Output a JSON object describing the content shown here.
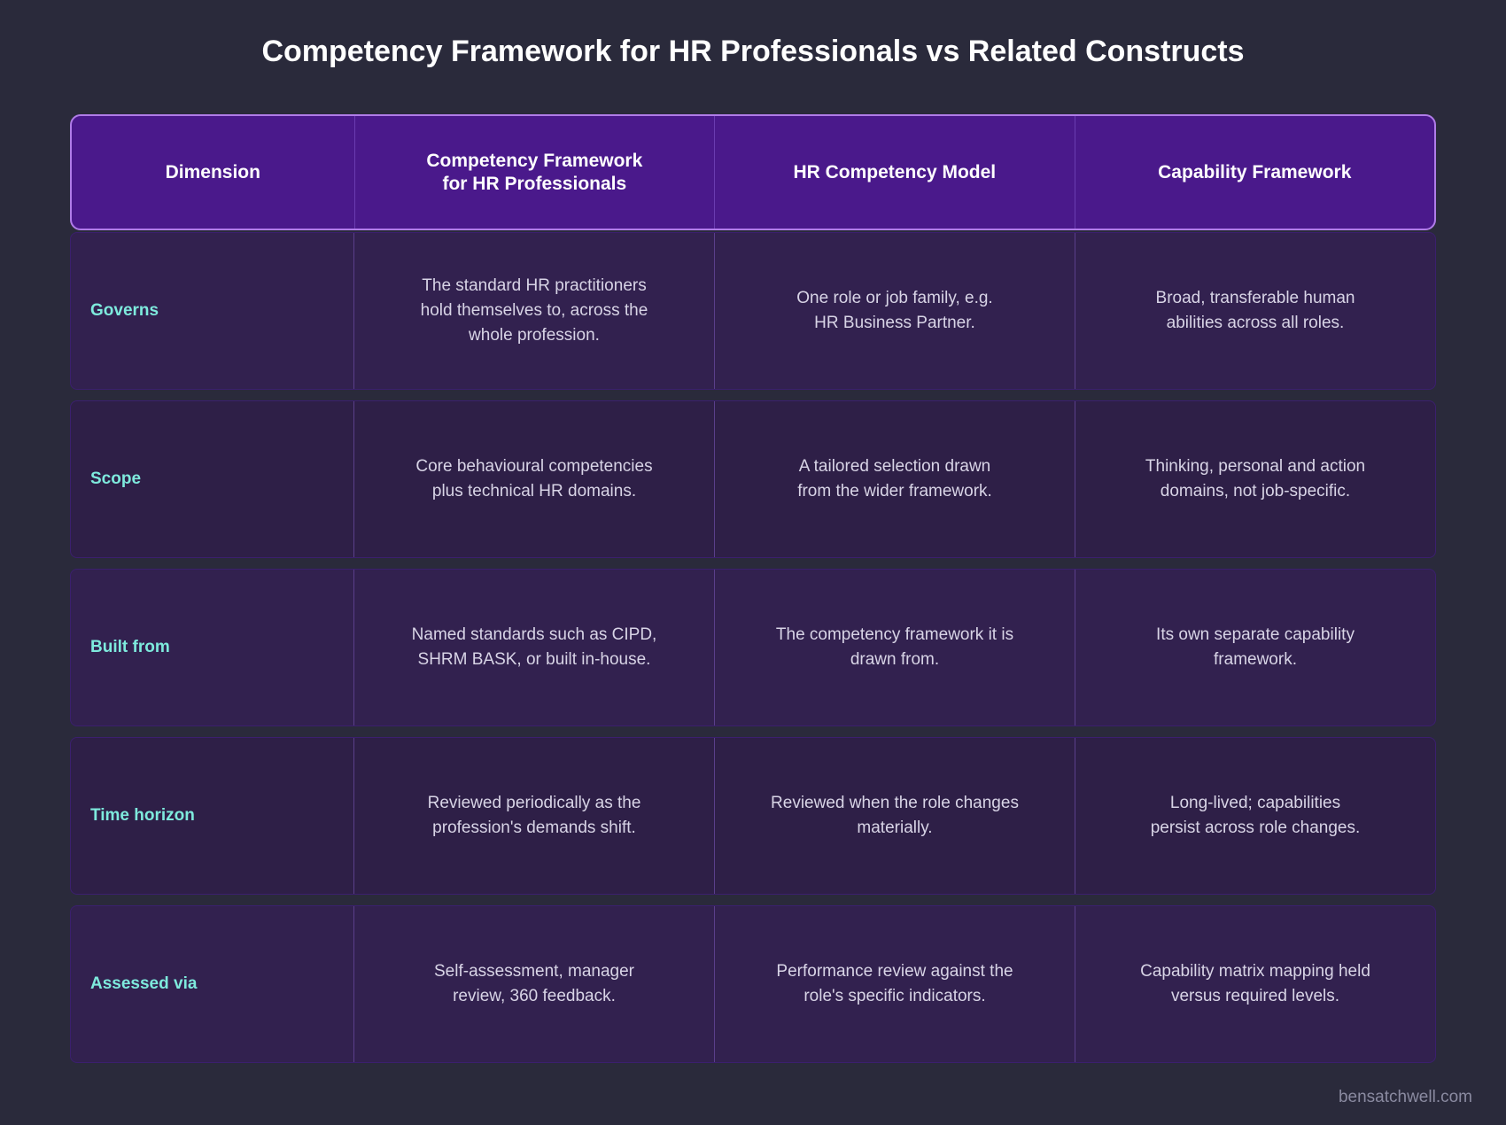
{
  "title": "Competency Framework for HR Professionals vs Related Constructs",
  "table": {
    "headers": [
      "Dimension",
      "Competency Framework\nfor HR Professionals",
      "HR Competency Model",
      "Capability Framework"
    ],
    "rows": [
      {
        "dimension": "Governs",
        "cells": [
          "The standard HR practitioners\nhold themselves to, across the\nwhole profession.",
          "One role or job family, e.g.\nHR Business Partner.",
          "Broad, transferable human\nabilities across all roles."
        ]
      },
      {
        "dimension": "Scope",
        "cells": [
          "Core behavioural competencies\nplus technical HR domains.",
          "A tailored selection drawn\nfrom the wider framework.",
          "Thinking, personal and action\ndomains, not job-specific."
        ]
      },
      {
        "dimension": "Built from",
        "cells": [
          "Named standards such as CIPD,\nSHRM BASK, or built in-house.",
          "The competency framework it is\ndrawn from.",
          "Its own separate capability\nframework."
        ]
      },
      {
        "dimension": "Time horizon",
        "cells": [
          "Reviewed periodically as the\nprofession's demands shift.",
          "Reviewed when the role changes\nmaterially.",
          "Long-lived; capabilities\npersist across role changes."
        ]
      },
      {
        "dimension": "Assessed via",
        "cells": [
          "Self-assessment, manager\nreview, 360 feedback.",
          "Performance review against the\nrole's specific indicators.",
          "Capability matrix mapping held\nversus required levels."
        ]
      }
    ]
  },
  "watermark": "bensatchwell.com",
  "colors": {
    "background": "#2a2a3b",
    "header": "#4a198b",
    "header_border": "#b07ce8",
    "dimension_text": "#7eeadd",
    "row_odd": "#32214f",
    "row_even": "#2e1f47"
  }
}
